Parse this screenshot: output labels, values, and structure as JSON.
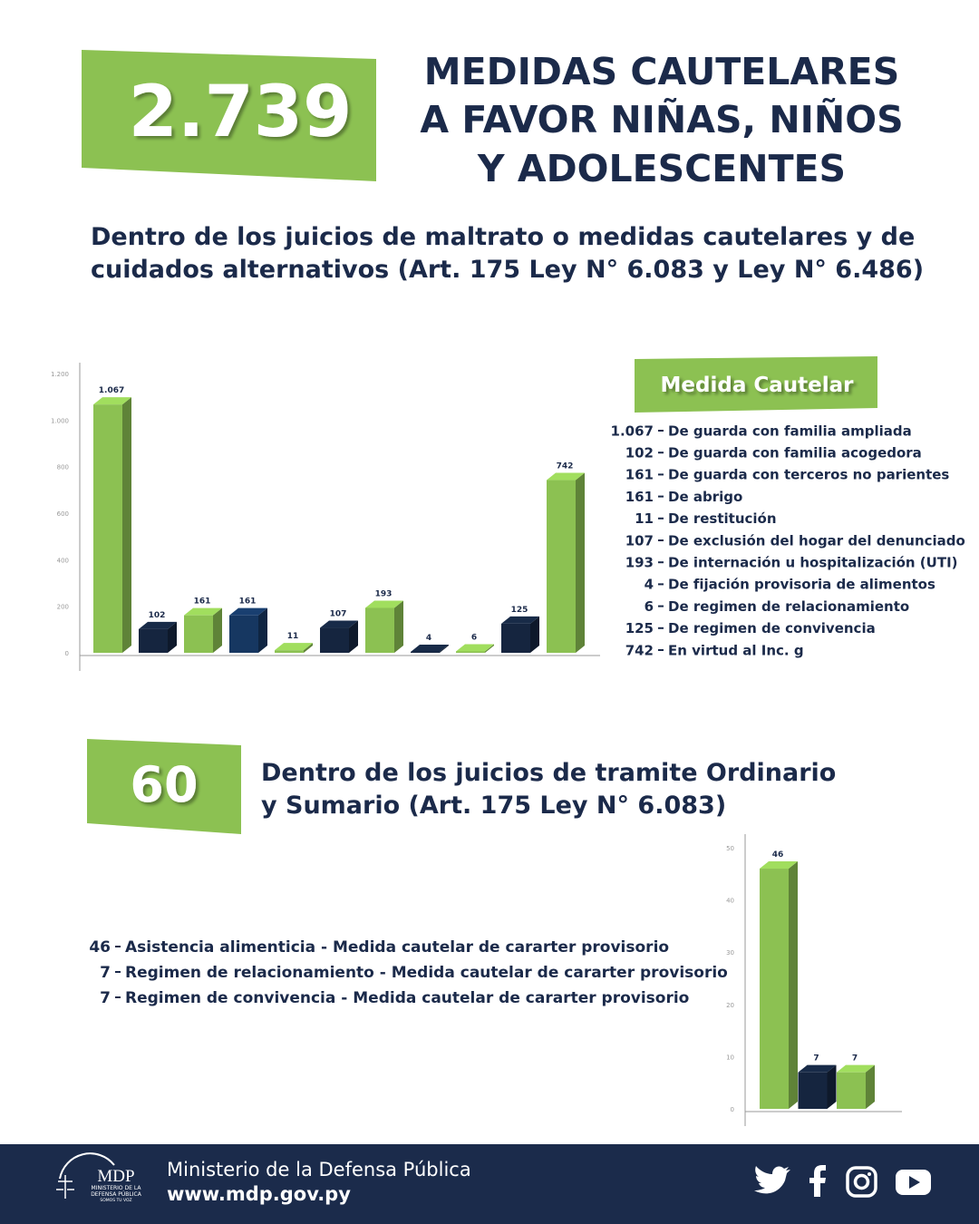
{
  "header": {
    "total": "2.739",
    "title": [
      "MEDIDAS CAUTELARES",
      "A FAVOR NIÑAS, NIÑOS",
      "Y ADOLESCENTES"
    ]
  },
  "sections": [
    {
      "heading": [
        "Dentro de los juicios de maltrato o medidas cautelares y de",
        "cuidados alternativos (Art. 175 Ley N° 6.083 y Ley N° 6.486)"
      ]
    },
    {
      "total": "60",
      "heading": [
        "Dentro de los juicios de tramite Ordinario",
        "y Sumario (Art. 175 Ley N° 6.083)"
      ]
    }
  ],
  "chart_data": [
    {
      "type": "bar",
      "legend_title": "Medida Cautelar",
      "categories": [
        "De guarda con familia ampliada",
        "De guarda con familia acogedora",
        "De guarda con terceros no parientes",
        "De abrigo",
        "De restitución",
        "De exclusión del hogar del denunciado",
        "De internación u hospitalización (UTI)",
        "De fijación provisoria de alimentos",
        "De regimen de relacionamiento",
        "De regimen de convivencia",
        "En virtud al Inc. g"
      ],
      "values": [
        1067,
        102,
        161,
        161,
        11,
        107,
        193,
        4,
        6,
        125,
        742
      ],
      "value_labels": [
        "1.067",
        "102",
        "161",
        "161",
        "11",
        "107",
        "193",
        "4",
        "6",
        "125",
        "742"
      ],
      "colors": [
        "#8cc152",
        "#15253f",
        "#8cc152",
        "#163761",
        "#8cc152",
        "#15253f",
        "#8cc152",
        "#15253f",
        "#8cc152",
        "#15253f",
        "#8cc152"
      ],
      "ylim": [
        0,
        1200
      ],
      "yticks": [
        0,
        200,
        400,
        600,
        800,
        {
          "value": 1000,
          "label": "1.000"
        },
        {
          "value": 1200,
          "label": "1.200"
        }
      ],
      "grid": false
    },
    {
      "type": "bar",
      "categories": [
        "Asistencia alimenticia - Medida cautelar de cararter provisorio",
        "Regimen de relacionamiento - Medida cautelar de cararter provisorio",
        "Regimen de convivencia - Medida cautelar de cararter provisorio"
      ],
      "values": [
        46,
        7,
        7
      ],
      "colors": [
        "#8cc152",
        "#15253f",
        "#8cc152"
      ],
      "ylim": [
        0,
        50
      ],
      "yticks": [
        0,
        10,
        20,
        30,
        40,
        50
      ],
      "grid": false
    }
  ],
  "footer": {
    "logo": "MDP",
    "logo_lines": [
      "MINISTERIO DE LA",
      "DEFENSA PÚBLICA",
      "SOMOS TU VOZ"
    ],
    "organization": "Ministerio de la Defensa Pública",
    "website": "www.mdp.gov.py"
  }
}
